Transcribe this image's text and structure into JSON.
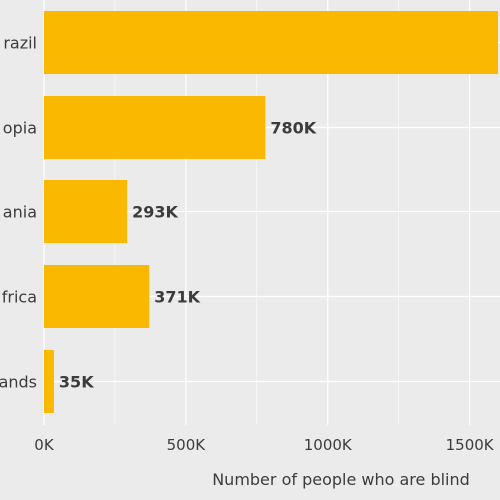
{
  "chart_data": {
    "type": "bar",
    "orientation": "horizontal",
    "categories": [
      "razil",
      "opia",
      "ania",
      "frica",
      "ands"
    ],
    "values": [
      1600000,
      780000,
      293000,
      371000,
      35000
    ],
    "value_labels": [
      "",
      "780K",
      "293K",
      "371K",
      "35K"
    ],
    "xlabel": "Number of people who are blind",
    "xticks": [
      {
        "value": 0,
        "label": "0K"
      },
      {
        "value": 500000,
        "label": "500K"
      },
      {
        "value": 1000000,
        "label": "1000K"
      },
      {
        "value": 1500000,
        "label": "1500K"
      }
    ],
    "xlim": [
      0,
      1600000
    ],
    "grid": true,
    "colors": {
      "bar": "#fbb800",
      "background": "#ebebeb",
      "grid": "#ffffff",
      "text": "#3c3c3c"
    }
  }
}
